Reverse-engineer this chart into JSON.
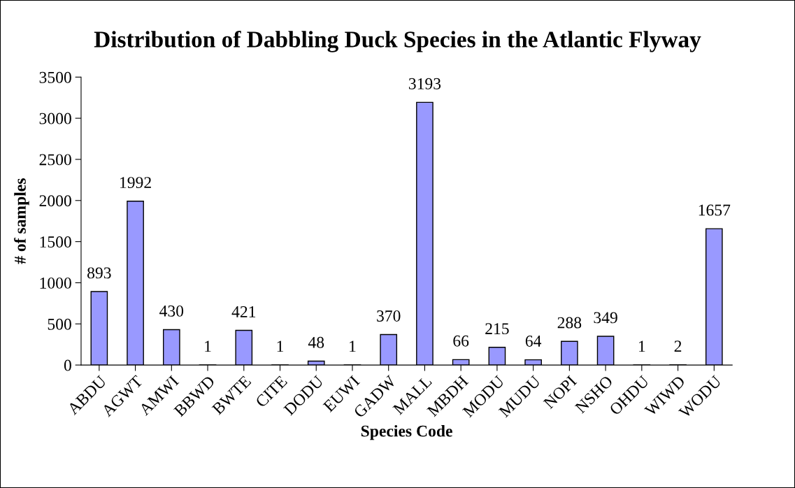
{
  "chart_data": {
    "type": "bar",
    "title": "Distribution of Dabbling Duck Species in the Atlantic Flyway",
    "xlabel": "Species Code",
    "ylabel": "# of samples",
    "categories": [
      "ABDU",
      "AGWT",
      "AMWI",
      "BBWD",
      "BWTE",
      "CITE",
      "DODU",
      "EUWI",
      "GADW",
      "MALL",
      "MBDH",
      "MODU",
      "MUDU",
      "NOPI",
      "NSHO",
      "OHDU",
      "WIWD",
      "WODU"
    ],
    "values": [
      893,
      1992,
      430,
      1,
      421,
      1,
      48,
      1,
      370,
      3193,
      66,
      215,
      64,
      288,
      349,
      1,
      2,
      1657
    ],
    "color": "#9999ff",
    "ylim": [
      0,
      3500
    ],
    "yticks": [
      0,
      500,
      1000,
      1500,
      2000,
      2500,
      3000,
      3500
    ],
    "data_labels": true,
    "grid": false,
    "legend": false
  }
}
